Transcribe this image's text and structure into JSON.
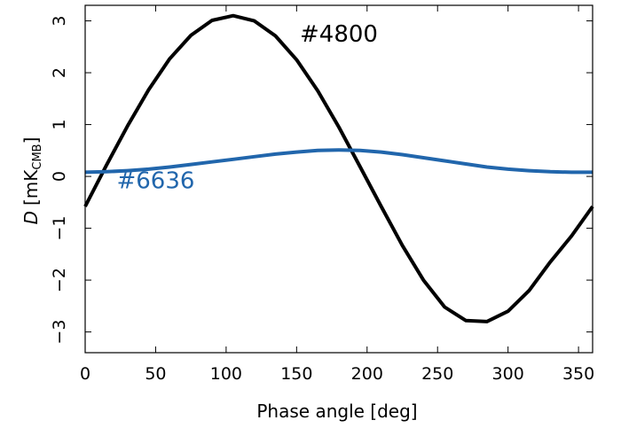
{
  "chart_data": {
    "type": "line",
    "xlabel": "Phase angle [deg]",
    "ylabel": {
      "symbol": "D",
      "unit_prefix": "[mK",
      "unit_sub": "CMB",
      "unit_suffix": "]"
    },
    "xlim": [
      0,
      360
    ],
    "ylim": [
      -3.4,
      3.3
    ],
    "xticks": [
      0,
      50,
      100,
      150,
      200,
      250,
      300,
      350
    ],
    "xtick_labels": [
      "0",
      "50",
      "100",
      "150",
      "200",
      "250",
      "300",
      "350"
    ],
    "yticks": [
      -3,
      -2,
      -1,
      0,
      1,
      2,
      3
    ],
    "ytick_labels": [
      "−3",
      "−2",
      "−1",
      "0",
      "1",
      "2",
      "3"
    ],
    "grid": false,
    "series": [
      {
        "name": "#4800",
        "color": "#000000",
        "x": [
          0,
          15,
          30,
          45,
          60,
          75,
          90,
          105,
          120,
          135,
          150,
          165,
          180,
          195,
          210,
          225,
          240,
          255,
          270,
          285,
          300,
          315,
          330,
          345,
          360
        ],
        "y": [
          -0.58,
          0.21,
          0.97,
          1.67,
          2.27,
          2.72,
          3.01,
          3.1,
          3.0,
          2.71,
          2.25,
          1.65,
          0.95,
          0.19,
          -0.58,
          -1.33,
          -2.0,
          -2.52,
          -2.78,
          -2.8,
          -2.6,
          -2.2,
          -1.65,
          -1.15,
          -0.58
        ]
      },
      {
        "name": "#6636",
        "color": "#2166ac",
        "x": [
          0,
          15,
          30,
          45,
          60,
          75,
          90,
          105,
          120,
          135,
          150,
          165,
          180,
          195,
          210,
          225,
          240,
          255,
          270,
          285,
          300,
          315,
          330,
          345,
          360
        ],
        "y": [
          0.08,
          0.09,
          0.11,
          0.14,
          0.18,
          0.23,
          0.28,
          0.33,
          0.38,
          0.43,
          0.47,
          0.5,
          0.51,
          0.5,
          0.47,
          0.42,
          0.36,
          0.3,
          0.24,
          0.18,
          0.14,
          0.11,
          0.09,
          0.08,
          0.08
        ]
      }
    ],
    "annotations": [
      {
        "text": "#4800",
        "series": 0,
        "x": 180,
        "y": 2.6
      },
      {
        "text": "#6636",
        "series": 1,
        "x": 50,
        "y": -0.23
      }
    ]
  }
}
